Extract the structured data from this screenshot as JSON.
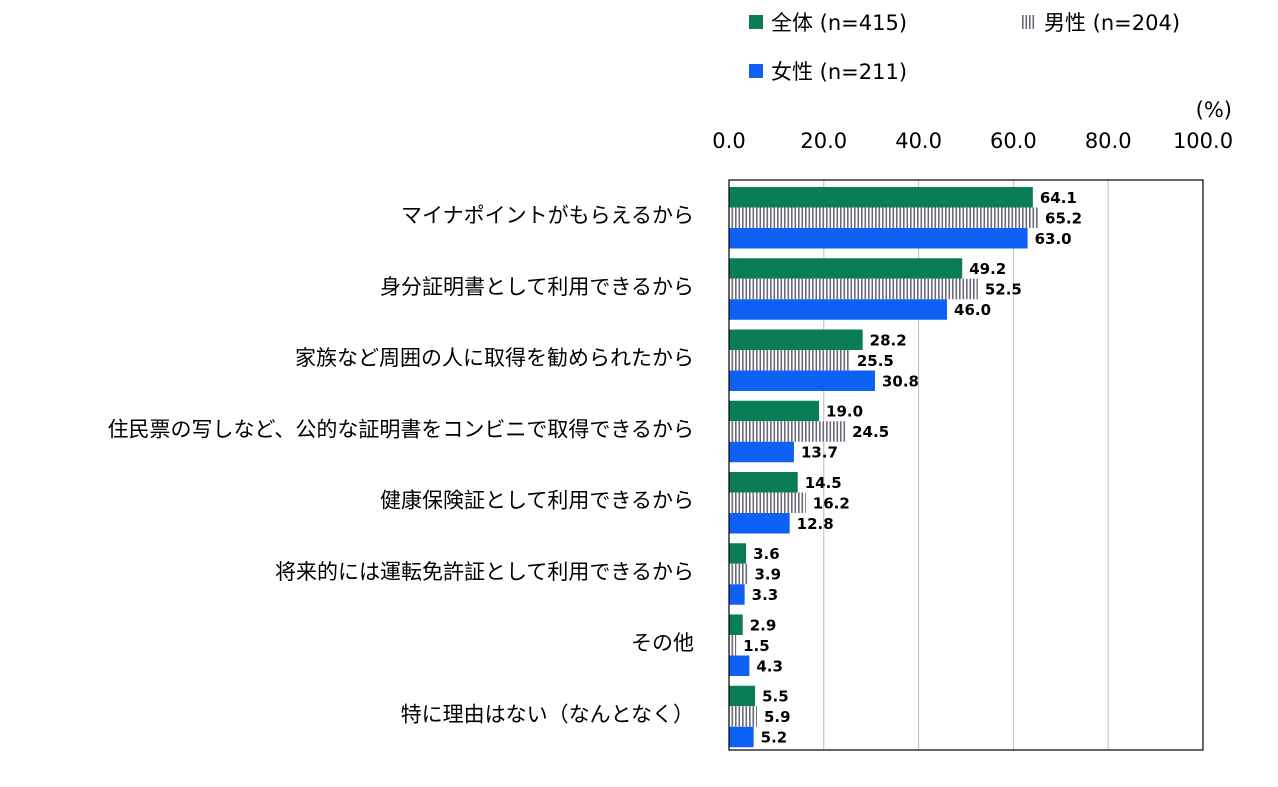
{
  "chart_data": {
    "type": "bar",
    "orientation": "horizontal",
    "unit_label": "(%)",
    "xlim": [
      0,
      100
    ],
    "ticks": [
      "0.0",
      "20.0",
      "40.0",
      "60.0",
      "80.0",
      "100.0"
    ],
    "tick_values": [
      0,
      20,
      40,
      60,
      80,
      100
    ],
    "grid": true,
    "legend_position": "top-right",
    "categories": [
      "マイナポイントがもらえるから",
      "身分証明書として利用できるから",
      "家族など周囲の人に取得を勧められたから",
      "住民票の写しなど、公的な証明書をコンビニで取得できるから",
      "健康保険証として利用できるから",
      "将来的には運転免許証として利用できるから",
      "その他",
      "特に理由はない（なんとなく）"
    ],
    "series": [
      {
        "name": "全体 (n=415)",
        "color": "#0a7d57",
        "pattern": "solid",
        "values": [
          64.1,
          49.2,
          28.2,
          19.0,
          14.5,
          3.6,
          2.9,
          5.5
        ],
        "labels": [
          "64.1",
          "49.2",
          "28.2",
          "19.0",
          "14.5",
          "3.6",
          "2.9",
          "5.5"
        ]
      },
      {
        "name": "男性 (n=204)",
        "color": "#6b6b7b",
        "pattern": "vertical-stripes",
        "values": [
          65.2,
          52.5,
          25.5,
          24.5,
          16.2,
          3.9,
          1.5,
          5.9
        ],
        "labels": [
          "65.2",
          "52.5",
          "25.5",
          "24.5",
          "16.2",
          "3.9",
          "1.5",
          "5.9"
        ]
      },
      {
        "name": "女性 (n=211)",
        "color": "#0f61f5",
        "pattern": "solid",
        "values": [
          63.0,
          46.0,
          30.8,
          13.7,
          12.8,
          3.3,
          4.3,
          5.2
        ],
        "labels": [
          "63.0",
          "46.0",
          "30.8",
          "13.7",
          "12.8",
          "3.3",
          "4.3",
          "5.2"
        ]
      }
    ]
  }
}
